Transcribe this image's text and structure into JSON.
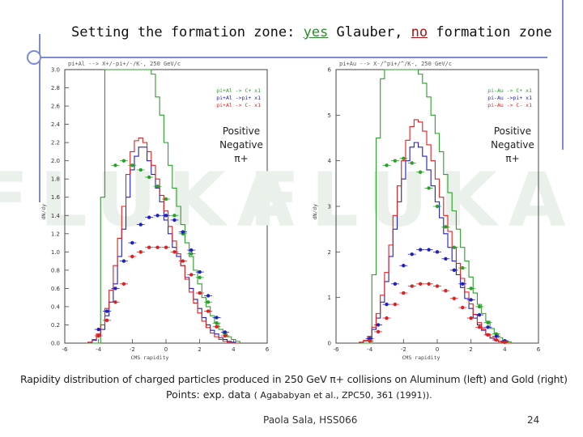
{
  "slide": {
    "title_prefix": "Setting the formation zone: ",
    "title_yes": "yes",
    "title_mid": " Glauber, ",
    "title_no": "no",
    "title_suffix": " formation zone",
    "caption_line1": "Rapidity distribution of charged particles produced in 250 GeV π+ collisions on Aluminum (left) and Gold (right)",
    "caption_line2_main": "Points: exp. data ",
    "caption_line2_ref": "( Agababyan et al., ZPC50, 361 (1991)).",
    "author": "Paola Sala, HSS066",
    "page_number": "24",
    "watermark": "FLUKA",
    "colors": {
      "accent": "#7d8ad6",
      "green": "#2aa02a",
      "red": "#e02020",
      "blue": "#2020c0"
    }
  },
  "chart_data": [
    {
      "type": "line",
      "title": "pi+Al --> X+/-pi+/-/K-, 250 GeV/c",
      "xlabel": "CMS rapidity",
      "ylabel": "dN/dy",
      "xlim": [
        -6,
        6
      ],
      "ylim": [
        0,
        3.0
      ],
      "xticks": [
        -6,
        -4,
        -2,
        0,
        2,
        4,
        6
      ],
      "yticks": [
        0.0,
        0.2,
        0.4,
        0.6,
        0.8,
        1.0,
        1.2,
        1.4,
        1.6,
        1.8,
        2.0,
        2.2,
        2.4,
        2.6,
        2.8,
        3.0
      ],
      "legend": [
        "pi+Al -> C+ x1",
        "pi+Al ->pi+ x1",
        "pi+Al -> C- x1"
      ],
      "annotation": [
        "Positive",
        "Negative",
        "π+"
      ],
      "x": [
        -4.5,
        -4.25,
        -4.0,
        -3.75,
        -3.5,
        -3.25,
        -3.0,
        -2.75,
        -2.5,
        -2.25,
        -2.0,
        -1.75,
        -1.5,
        -1.25,
        -1.0,
        -0.75,
        -0.5,
        -0.25,
        0.0,
        0.25,
        0.5,
        0.75,
        1.0,
        1.25,
        1.5,
        1.75,
        2.0,
        2.25,
        2.5,
        2.75,
        3.0,
        3.25,
        3.5,
        3.75,
        4.0,
        4.25
      ],
      "series": [
        {
          "name": "pi+Al -> C+ x1",
          "color": "green",
          "values": [
            0.0,
            0.0,
            0.0,
            1.6,
            3.0,
            3.0,
            3.0,
            3.0,
            3.0,
            3.0,
            3.0,
            3.0,
            3.0,
            3.0,
            3.0,
            2.95,
            2.7,
            2.5,
            2.2,
            1.95,
            1.7,
            1.5,
            1.3,
            1.1,
            0.95,
            0.8,
            0.65,
            0.5,
            0.4,
            0.3,
            0.22,
            0.15,
            0.1,
            0.07,
            0.04,
            0.02
          ]
        },
        {
          "name": "pi+Al ->pi+ x1",
          "color": "blue",
          "values": [
            0.01,
            0.03,
            0.08,
            0.15,
            0.3,
            0.45,
            0.65,
            0.95,
            1.25,
            1.6,
            1.9,
            2.05,
            2.15,
            2.15,
            2.0,
            1.85,
            1.7,
            1.55,
            1.35,
            1.2,
            1.05,
            0.95,
            0.85,
            0.72,
            0.6,
            0.48,
            0.38,
            0.28,
            0.2,
            0.14,
            0.1,
            0.06,
            0.04,
            0.02,
            0.01,
            0.0
          ]
        },
        {
          "name": "pi+Al -> C- x1",
          "color": "red",
          "values": [
            0.01,
            0.04,
            0.1,
            0.2,
            0.38,
            0.58,
            0.85,
            1.15,
            1.5,
            1.85,
            2.1,
            2.22,
            2.25,
            2.2,
            2.1,
            1.95,
            1.8,
            1.62,
            1.45,
            1.28,
            1.12,
            0.98,
            0.85,
            0.7,
            0.56,
            0.44,
            0.33,
            0.24,
            0.17,
            0.11,
            0.07,
            0.04,
            0.02,
            0.01,
            0.0,
            0.0
          ]
        }
      ],
      "points": [
        {
          "name": "Positive",
          "color": "green",
          "x": [
            -3.0,
            -2.5,
            -2.0,
            -1.5,
            -1.0,
            -0.5,
            0.0,
            0.5,
            1.0,
            1.5,
            2.0,
            2.5,
            3.0
          ],
          "values": [
            1.95,
            2.0,
            1.95,
            1.9,
            1.82,
            1.72,
            1.58,
            1.4,
            1.2,
            0.98,
            0.72,
            0.45,
            0.22
          ]
        },
        {
          "name": "Negative",
          "color": "blue",
          "x": [
            -4.0,
            -3.5,
            -3.0,
            -2.5,
            -2.0,
            -1.5,
            -1.0,
            -0.5,
            0.0,
            0.5,
            1.0,
            1.5,
            2.0,
            2.5,
            3.0,
            3.5
          ],
          "values": [
            0.15,
            0.35,
            0.6,
            0.9,
            1.1,
            1.3,
            1.38,
            1.4,
            1.4,
            1.35,
            1.22,
            1.02,
            0.78,
            0.52,
            0.28,
            0.12
          ]
        },
        {
          "name": "π+",
          "color": "red",
          "x": [
            -4.0,
            -3.5,
            -3.0,
            -2.5,
            -2.0,
            -1.5,
            -1.0,
            -0.5,
            0.0,
            0.5,
            1.0,
            1.5,
            2.0,
            2.5,
            3.0,
            3.5
          ],
          "values": [
            0.08,
            0.25,
            0.45,
            0.65,
            0.95,
            1.0,
            1.05,
            1.05,
            1.05,
            1.0,
            0.9,
            0.75,
            0.55,
            0.35,
            0.18,
            0.08
          ]
        }
      ]
    },
    {
      "type": "line",
      "title": "pi+Au --> X-/^pi+/^/K-, 250 GeV/c",
      "xlabel": "CMS rapidity",
      "ylabel": "dN/dy",
      "xlim": [
        -6,
        6
      ],
      "ylim": [
        0,
        6
      ],
      "xticks": [
        -6,
        -4,
        -2,
        0,
        2,
        4,
        6
      ],
      "yticks": [
        0,
        1,
        2,
        3,
        4,
        5,
        6
      ],
      "legend": [
        "pi-Au -> C+ x1",
        "pi-Au ->pi+ x1",
        "pi-Au -> C- x1"
      ],
      "annotation": [
        "Positive",
        "Negative",
        "π+"
      ],
      "x": [
        -4.5,
        -4.25,
        -4.0,
        -3.75,
        -3.5,
        -3.25,
        -3.0,
        -2.75,
        -2.5,
        -2.25,
        -2.0,
        -1.75,
        -1.5,
        -1.25,
        -1.0,
        -0.75,
        -0.5,
        -0.25,
        0.0,
        0.25,
        0.5,
        0.75,
        1.0,
        1.25,
        1.5,
        1.75,
        2.0,
        2.25,
        2.5,
        2.75,
        3.0,
        3.25,
        3.5,
        3.75,
        4.0,
        4.25
      ],
      "series": [
        {
          "name": "pi-Au -> C+ x1",
          "color": "green",
          "values": [
            0.0,
            0.0,
            0.0,
            1.5,
            4.5,
            5.8,
            6.0,
            6.0,
            6.0,
            6.0,
            6.0,
            6.0,
            6.0,
            6.0,
            5.9,
            5.7,
            5.4,
            5.0,
            4.6,
            4.2,
            3.7,
            3.3,
            2.9,
            2.5,
            2.1,
            1.8,
            1.45,
            1.1,
            0.85,
            0.65,
            0.48,
            0.32,
            0.2,
            0.12,
            0.06,
            0.03
          ]
        },
        {
          "name": "pi-Au ->pi+ x1",
          "color": "blue",
          "values": [
            0.02,
            0.05,
            0.12,
            0.3,
            0.55,
            0.9,
            1.35,
            1.9,
            2.5,
            3.1,
            3.6,
            4.0,
            4.3,
            4.4,
            4.3,
            4.1,
            3.8,
            3.45,
            3.1,
            2.75,
            2.4,
            2.1,
            1.8,
            1.5,
            1.22,
            0.98,
            0.76,
            0.55,
            0.4,
            0.28,
            0.18,
            0.11,
            0.06,
            0.03,
            0.01,
            0.0
          ]
        },
        {
          "name": "pi-Au -> C- x1",
          "color": "red",
          "values": [
            0.02,
            0.06,
            0.15,
            0.35,
            0.65,
            1.05,
            1.55,
            2.15,
            2.8,
            3.45,
            4.0,
            4.45,
            4.75,
            4.9,
            4.85,
            4.65,
            4.35,
            4.0,
            3.6,
            3.2,
            2.8,
            2.45,
            2.1,
            1.75,
            1.42,
            1.12,
            0.86,
            0.63,
            0.45,
            0.31,
            0.2,
            0.12,
            0.07,
            0.03,
            0.01,
            0.0
          ]
        }
      ],
      "points": [
        {
          "name": "Positive",
          "color": "green",
          "x": [
            -3.0,
            -2.5,
            -2.0,
            -1.5,
            -1.0,
            -0.5,
            0.0,
            0.5,
            1.0,
            1.5,
            2.0,
            2.5,
            3.0,
            3.5
          ],
          "values": [
            3.9,
            4.0,
            4.05,
            3.95,
            3.75,
            3.4,
            3.0,
            2.55,
            2.1,
            1.65,
            1.2,
            0.8,
            0.45,
            0.2
          ]
        },
        {
          "name": "Negative",
          "color": "blue",
          "x": [
            -4.0,
            -3.5,
            -3.0,
            -2.5,
            -2.0,
            -1.5,
            -1.0,
            -0.5,
            0.0,
            0.5,
            1.0,
            1.5,
            2.0,
            2.5,
            3.0,
            3.5,
            4.0
          ],
          "values": [
            0.1,
            0.4,
            0.85,
            1.3,
            1.7,
            1.95,
            2.05,
            2.05,
            2.0,
            1.85,
            1.6,
            1.3,
            0.95,
            0.62,
            0.35,
            0.15,
            0.05
          ]
        },
        {
          "name": "π+",
          "color": "red",
          "x": [
            -4.0,
            -3.5,
            -3.0,
            -2.5,
            -2.0,
            -1.5,
            -1.0,
            -0.5,
            0.0,
            0.5,
            1.0,
            1.5,
            2.0,
            2.5,
            3.0,
            3.5,
            4.0
          ],
          "values": [
            0.05,
            0.25,
            0.55,
            0.85,
            1.1,
            1.25,
            1.3,
            1.3,
            1.25,
            1.15,
            0.98,
            0.78,
            0.55,
            0.35,
            0.18,
            0.07,
            0.02
          ]
        }
      ]
    }
  ]
}
